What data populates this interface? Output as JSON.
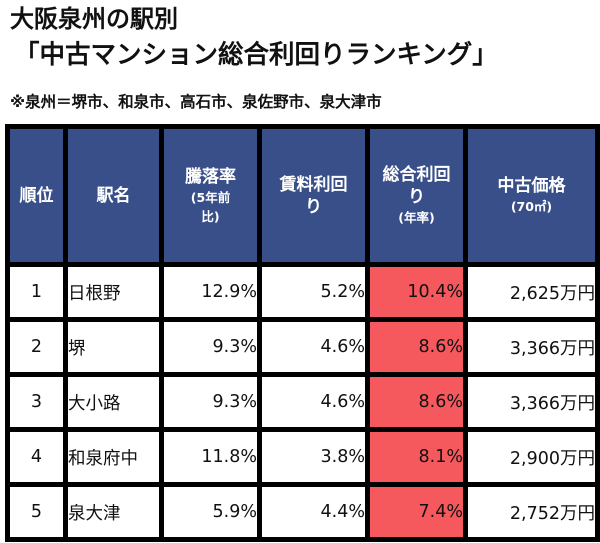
{
  "title": {
    "line1": "大阪泉州の駅別",
    "line2": "「中古マンション総合利回りランキング」"
  },
  "note": "※泉州＝堺市、和泉市、高石市、泉佐野市、泉大津市",
  "table": {
    "headers": [
      {
        "main": "順位",
        "sub": ""
      },
      {
        "main": "駅名",
        "sub": ""
      },
      {
        "main": "騰落率",
        "sub": "(5年前比)"
      },
      {
        "main": "賃料利回り",
        "sub": ""
      },
      {
        "main": "総合利回り",
        "sub": "(年率)"
      },
      {
        "main": "中古価格",
        "sub": "(70㎡)"
      }
    ],
    "rows": [
      {
        "rank": "1",
        "station": "日根野",
        "change": "12.9%",
        "rent_yield": "5.2%",
        "total_yield": "10.4%",
        "price": "2,625万円"
      },
      {
        "rank": "2",
        "station": "堺",
        "change": "9.3%",
        "rent_yield": "4.6%",
        "total_yield": "8.6%",
        "price": "3,366万円"
      },
      {
        "rank": "3",
        "station": "大小路",
        "change": "9.3%",
        "rent_yield": "4.6%",
        "total_yield": "8.6%",
        "price": "3,366万円"
      },
      {
        "rank": "4",
        "station": "和泉府中",
        "change": "11.8%",
        "rent_yield": "3.8%",
        "total_yield": "8.1%",
        "price": "2,900万円"
      },
      {
        "rank": "5",
        "station": "泉大津",
        "change": "5.9%",
        "rent_yield": "4.4%",
        "total_yield": "7.4%",
        "price": "2,752万円"
      }
    ]
  },
  "colors": {
    "header_bg": "#394f8a",
    "highlight": "#f5595d",
    "border": "#000000"
  }
}
